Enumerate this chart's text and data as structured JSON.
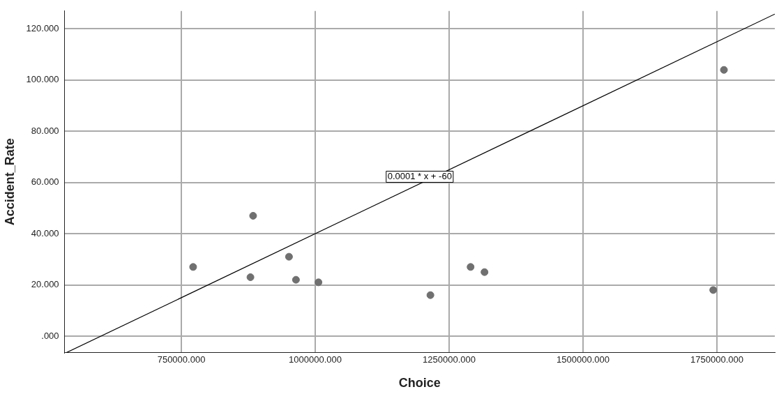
{
  "chart_data": {
    "type": "scatter",
    "xlabel": "Choice",
    "ylabel": "Accident_Rate",
    "x": [
      772000,
      884000,
      879000,
      951000,
      964000,
      1006000,
      1215000,
      1290000,
      1316000,
      1743000,
      1763000
    ],
    "series": [
      {
        "color": "#707070",
        "marker": "circle",
        "values": [
          27,
          47,
          23,
          31,
          22,
          21,
          16,
          27,
          25,
          18,
          104
        ]
      },
      {
        "type": "line",
        "color": "#000000",
        "x": [
          535000,
          1858000
        ],
        "values": [
          -6.5,
          125.8
        ]
      }
    ],
    "xlim": [
      532000,
      1858000
    ],
    "ylim": [
      -6.5,
      127
    ],
    "xticks": [
      {
        "value": 750000,
        "label": "750000.000"
      },
      {
        "value": 1000000,
        "label": "1000000.000"
      },
      {
        "value": 1250000,
        "label": "1250000.000"
      },
      {
        "value": 1500000,
        "label": "1500000.000"
      },
      {
        "value": 1750000,
        "label": "1750000.000"
      }
    ],
    "yticks": [
      {
        "value": 0,
        "label": ".000"
      },
      {
        "value": 20,
        "label": "20.000"
      },
      {
        "value": 40,
        "label": "40.000"
      },
      {
        "value": 60,
        "label": "60.000"
      },
      {
        "value": 80,
        "label": "80.000"
      },
      {
        "value": 100,
        "label": "100.000"
      },
      {
        "value": 120,
        "label": "120.000"
      }
    ],
    "annotations": [
      "0.0001 * x + -60"
    ],
    "grid": true,
    "legend": false
  }
}
